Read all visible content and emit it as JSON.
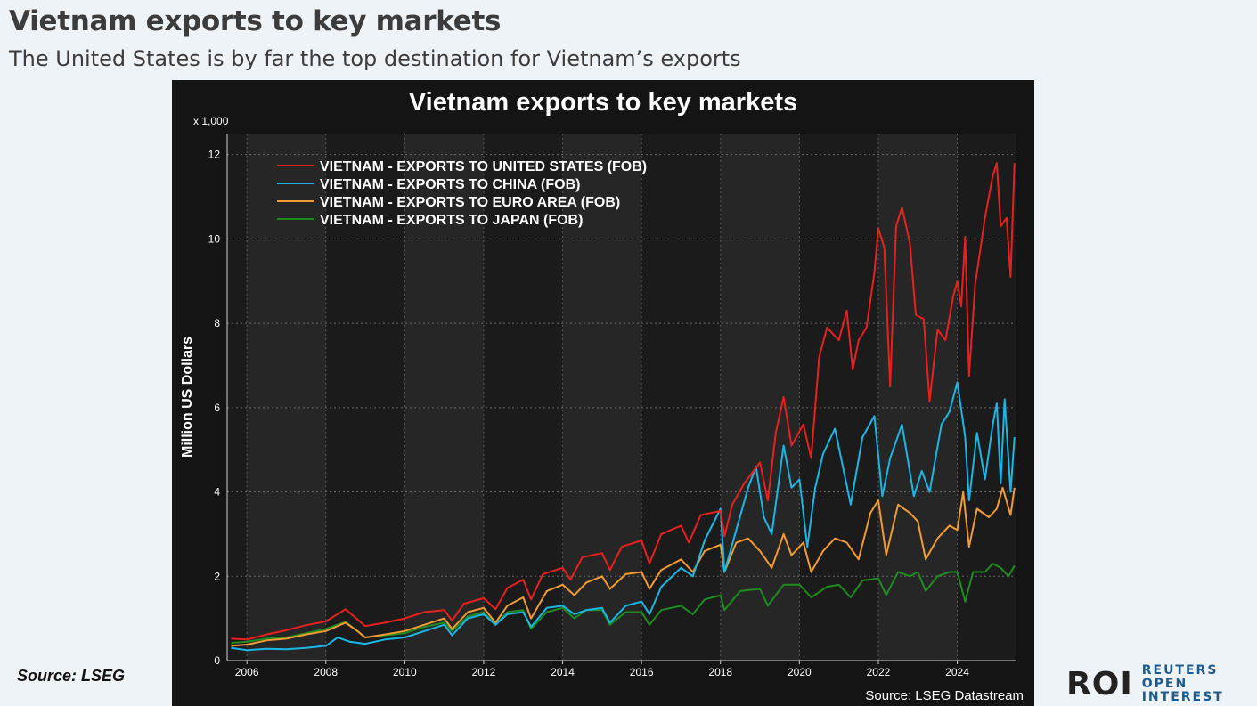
{
  "header": {
    "title": "Vietnam exports to key markets",
    "subtitle": "The United States is by far the top destination for Vietnam’s exports"
  },
  "footer": {
    "source": "Source: LSEG",
    "logo_mark": "ROI",
    "logo_text_line1": "REUTERS OPEN",
    "logo_text_line2": "INTEREST"
  },
  "colors": {
    "page_bg": "#eef3f8",
    "panel_bg": "#141414",
    "plot_band_light": "#262626",
    "plot_band_dark": "#1b1b1b",
    "us": "#e8211f",
    "china": "#1ab7e6",
    "euro": "#f29a33",
    "japan": "#1e8c1e"
  },
  "chart_data": {
    "type": "line",
    "title": "Vietnam exports to key markets",
    "ylabel": "Million US Dollars",
    "yunit_note": "x 1,000",
    "source_note": "Source: LSEG Datastream",
    "xlim": [
      2005.5,
      2025.5
    ],
    "ylim": [
      0,
      12.5
    ],
    "x_ticks": [
      2006,
      2008,
      2010,
      2012,
      2014,
      2016,
      2018,
      2020,
      2022,
      2024
    ],
    "y_ticks": [
      0,
      2,
      4,
      6,
      8,
      10,
      12
    ],
    "grid": true,
    "legend_position": "top-left",
    "series": [
      {
        "name": "VIETNAM - EXPORTS TO UNITED STATES (FOB)",
        "color": "#e8211f",
        "points": [
          [
            2005.6,
            0.52
          ],
          [
            2006.0,
            0.5
          ],
          [
            2006.5,
            0.62
          ],
          [
            2007.0,
            0.72
          ],
          [
            2007.5,
            0.84
          ],
          [
            2008.0,
            0.93
          ],
          [
            2008.5,
            1.22
          ],
          [
            2008.8,
            0.98
          ],
          [
            2009.0,
            0.82
          ],
          [
            2009.5,
            0.9
          ],
          [
            2010.0,
            1.0
          ],
          [
            2010.5,
            1.15
          ],
          [
            2011.0,
            1.2
          ],
          [
            2011.2,
            0.95
          ],
          [
            2011.5,
            1.35
          ],
          [
            2012.0,
            1.48
          ],
          [
            2012.3,
            1.22
          ],
          [
            2012.6,
            1.72
          ],
          [
            2013.0,
            1.92
          ],
          [
            2013.2,
            1.45
          ],
          [
            2013.5,
            2.05
          ],
          [
            2014.0,
            2.2
          ],
          [
            2014.2,
            1.92
          ],
          [
            2014.5,
            2.45
          ],
          [
            2015.0,
            2.55
          ],
          [
            2015.2,
            2.15
          ],
          [
            2015.5,
            2.7
          ],
          [
            2016.0,
            2.85
          ],
          [
            2016.2,
            2.3
          ],
          [
            2016.5,
            3.0
          ],
          [
            2017.0,
            3.2
          ],
          [
            2017.2,
            2.8
          ],
          [
            2017.5,
            3.45
          ],
          [
            2018.0,
            3.55
          ],
          [
            2018.1,
            2.95
          ],
          [
            2018.3,
            3.7
          ],
          [
            2018.6,
            4.2
          ],
          [
            2019.0,
            4.7
          ],
          [
            2019.2,
            3.8
          ],
          [
            2019.4,
            5.4
          ],
          [
            2019.6,
            6.25
          ],
          [
            2019.8,
            5.1
          ],
          [
            2020.1,
            5.6
          ],
          [
            2020.3,
            4.8
          ],
          [
            2020.5,
            7.2
          ],
          [
            2020.7,
            7.9
          ],
          [
            2021.0,
            7.6
          ],
          [
            2021.2,
            8.3
          ],
          [
            2021.35,
            6.9
          ],
          [
            2021.5,
            7.6
          ],
          [
            2021.7,
            7.9
          ],
          [
            2021.9,
            9.2
          ],
          [
            2022.0,
            10.25
          ],
          [
            2022.15,
            9.8
          ],
          [
            2022.3,
            6.5
          ],
          [
            2022.45,
            10.3
          ],
          [
            2022.6,
            10.75
          ],
          [
            2022.8,
            9.9
          ],
          [
            2022.95,
            8.2
          ],
          [
            2023.15,
            8.1
          ],
          [
            2023.3,
            6.15
          ],
          [
            2023.5,
            7.85
          ],
          [
            2023.7,
            7.6
          ],
          [
            2023.9,
            8.65
          ],
          [
            2024.0,
            9.0
          ],
          [
            2024.1,
            8.4
          ],
          [
            2024.2,
            10.05
          ],
          [
            2024.3,
            6.75
          ],
          [
            2024.45,
            8.9
          ],
          [
            2024.7,
            10.5
          ],
          [
            2024.9,
            11.5
          ],
          [
            2025.0,
            11.8
          ],
          [
            2025.1,
            10.3
          ],
          [
            2025.25,
            10.5
          ],
          [
            2025.35,
            9.1
          ],
          [
            2025.45,
            11.8
          ]
        ]
      },
      {
        "name": "VIETNAM - EXPORTS TO CHINA (FOB)",
        "color": "#1ab7e6",
        "points": [
          [
            2005.6,
            0.3
          ],
          [
            2006.0,
            0.25
          ],
          [
            2006.5,
            0.28
          ],
          [
            2007.0,
            0.27
          ],
          [
            2007.5,
            0.3
          ],
          [
            2008.0,
            0.35
          ],
          [
            2008.3,
            0.55
          ],
          [
            2008.6,
            0.45
          ],
          [
            2009.0,
            0.4
          ],
          [
            2009.5,
            0.5
          ],
          [
            2010.0,
            0.55
          ],
          [
            2010.5,
            0.7
          ],
          [
            2011.0,
            0.85
          ],
          [
            2011.2,
            0.6
          ],
          [
            2011.6,
            1.0
          ],
          [
            2012.0,
            1.1
          ],
          [
            2012.3,
            0.85
          ],
          [
            2012.6,
            1.1
          ],
          [
            2013.0,
            1.15
          ],
          [
            2013.2,
            0.8
          ],
          [
            2013.6,
            1.25
          ],
          [
            2014.0,
            1.3
          ],
          [
            2014.3,
            1.1
          ],
          [
            2014.6,
            1.2
          ],
          [
            2015.0,
            1.25
          ],
          [
            2015.2,
            0.9
          ],
          [
            2015.6,
            1.3
          ],
          [
            2016.0,
            1.4
          ],
          [
            2016.2,
            1.1
          ],
          [
            2016.5,
            1.75
          ],
          [
            2017.0,
            2.2
          ],
          [
            2017.3,
            2.0
          ],
          [
            2017.6,
            2.85
          ],
          [
            2018.0,
            3.6
          ],
          [
            2018.1,
            2.1
          ],
          [
            2018.4,
            3.1
          ],
          [
            2018.7,
            4.1
          ],
          [
            2018.9,
            4.6
          ],
          [
            2019.1,
            3.4
          ],
          [
            2019.3,
            3.0
          ],
          [
            2019.6,
            5.1
          ],
          [
            2019.8,
            4.1
          ],
          [
            2020.0,
            4.3
          ],
          [
            2020.2,
            2.7
          ],
          [
            2020.4,
            4.1
          ],
          [
            2020.6,
            4.9
          ],
          [
            2020.9,
            5.5
          ],
          [
            2021.1,
            4.6
          ],
          [
            2021.3,
            3.7
          ],
          [
            2021.6,
            5.3
          ],
          [
            2021.9,
            5.8
          ],
          [
            2022.1,
            3.9
          ],
          [
            2022.3,
            4.8
          ],
          [
            2022.6,
            5.6
          ],
          [
            2022.9,
            3.9
          ],
          [
            2023.1,
            4.5
          ],
          [
            2023.3,
            4.0
          ],
          [
            2023.6,
            5.6
          ],
          [
            2023.8,
            5.9
          ],
          [
            2024.0,
            6.6
          ],
          [
            2024.2,
            5.3
          ],
          [
            2024.3,
            3.8
          ],
          [
            2024.5,
            5.4
          ],
          [
            2024.7,
            4.3
          ],
          [
            2024.9,
            5.6
          ],
          [
            2025.0,
            6.1
          ],
          [
            2025.1,
            4.2
          ],
          [
            2025.2,
            6.2
          ],
          [
            2025.35,
            4.0
          ],
          [
            2025.45,
            5.3
          ]
        ]
      },
      {
        "name": "VIETNAM - EXPORTS TO EURO AREA (FOB)",
        "color": "#f29a33",
        "points": [
          [
            2005.6,
            0.35
          ],
          [
            2006.0,
            0.38
          ],
          [
            2006.5,
            0.48
          ],
          [
            2007.0,
            0.52
          ],
          [
            2007.5,
            0.62
          ],
          [
            2008.0,
            0.7
          ],
          [
            2008.5,
            0.9
          ],
          [
            2008.8,
            0.7
          ],
          [
            2009.0,
            0.55
          ],
          [
            2009.5,
            0.62
          ],
          [
            2010.0,
            0.7
          ],
          [
            2010.5,
            0.85
          ],
          [
            2011.0,
            1.0
          ],
          [
            2011.2,
            0.75
          ],
          [
            2011.6,
            1.15
          ],
          [
            2012.0,
            1.25
          ],
          [
            2012.3,
            0.9
          ],
          [
            2012.6,
            1.3
          ],
          [
            2013.0,
            1.5
          ],
          [
            2013.2,
            1.0
          ],
          [
            2013.6,
            1.65
          ],
          [
            2014.0,
            1.8
          ],
          [
            2014.3,
            1.55
          ],
          [
            2014.6,
            1.85
          ],
          [
            2015.0,
            2.0
          ],
          [
            2015.2,
            1.7
          ],
          [
            2015.6,
            2.05
          ],
          [
            2016.0,
            2.1
          ],
          [
            2016.2,
            1.7
          ],
          [
            2016.5,
            2.15
          ],
          [
            2017.0,
            2.4
          ],
          [
            2017.3,
            2.1
          ],
          [
            2017.6,
            2.6
          ],
          [
            2018.0,
            2.75
          ],
          [
            2018.1,
            2.1
          ],
          [
            2018.4,
            2.8
          ],
          [
            2018.7,
            2.9
          ],
          [
            2019.0,
            2.6
          ],
          [
            2019.3,
            2.2
          ],
          [
            2019.6,
            3.0
          ],
          [
            2019.8,
            2.5
          ],
          [
            2020.1,
            2.8
          ],
          [
            2020.3,
            2.1
          ],
          [
            2020.6,
            2.6
          ],
          [
            2020.9,
            2.9
          ],
          [
            2021.2,
            2.8
          ],
          [
            2021.5,
            2.4
          ],
          [
            2021.8,
            3.5
          ],
          [
            2022.0,
            3.8
          ],
          [
            2022.2,
            2.5
          ],
          [
            2022.5,
            3.7
          ],
          [
            2022.8,
            3.5
          ],
          [
            2023.0,
            3.3
          ],
          [
            2023.2,
            2.4
          ],
          [
            2023.5,
            2.9
          ],
          [
            2023.8,
            3.2
          ],
          [
            2024.0,
            3.1
          ],
          [
            2024.15,
            4.0
          ],
          [
            2024.3,
            2.7
          ],
          [
            2024.5,
            3.6
          ],
          [
            2024.8,
            3.4
          ],
          [
            2025.0,
            3.6
          ],
          [
            2025.15,
            4.1
          ],
          [
            2025.35,
            3.45
          ],
          [
            2025.45,
            4.1
          ]
        ]
      },
      {
        "name": "VIETNAM - EXPORTS TO JAPAN (FOB)",
        "color": "#1e8c1e",
        "points": [
          [
            2005.6,
            0.42
          ],
          [
            2006.0,
            0.45
          ],
          [
            2006.5,
            0.52
          ],
          [
            2007.0,
            0.55
          ],
          [
            2007.5,
            0.65
          ],
          [
            2008.0,
            0.75
          ],
          [
            2008.5,
            0.92
          ],
          [
            2008.8,
            0.7
          ],
          [
            2009.0,
            0.55
          ],
          [
            2009.5,
            0.6
          ],
          [
            2010.0,
            0.65
          ],
          [
            2010.5,
            0.8
          ],
          [
            2011.0,
            0.9
          ],
          [
            2011.2,
            0.7
          ],
          [
            2011.6,
            1.05
          ],
          [
            2012.0,
            1.15
          ],
          [
            2012.3,
            0.85
          ],
          [
            2012.6,
            1.15
          ],
          [
            2013.0,
            1.2
          ],
          [
            2013.2,
            0.75
          ],
          [
            2013.6,
            1.15
          ],
          [
            2014.0,
            1.25
          ],
          [
            2014.3,
            1.0
          ],
          [
            2014.6,
            1.2
          ],
          [
            2015.0,
            1.2
          ],
          [
            2015.2,
            0.85
          ],
          [
            2015.6,
            1.15
          ],
          [
            2016.0,
            1.15
          ],
          [
            2016.2,
            0.85
          ],
          [
            2016.5,
            1.2
          ],
          [
            2017.0,
            1.3
          ],
          [
            2017.3,
            1.1
          ],
          [
            2017.6,
            1.45
          ],
          [
            2018.0,
            1.55
          ],
          [
            2018.1,
            1.2
          ],
          [
            2018.5,
            1.65
          ],
          [
            2019.0,
            1.7
          ],
          [
            2019.2,
            1.3
          ],
          [
            2019.6,
            1.8
          ],
          [
            2020.0,
            1.8
          ],
          [
            2020.3,
            1.5
          ],
          [
            2020.7,
            1.75
          ],
          [
            2021.0,
            1.8
          ],
          [
            2021.3,
            1.5
          ],
          [
            2021.6,
            1.9
          ],
          [
            2022.0,
            1.95
          ],
          [
            2022.2,
            1.55
          ],
          [
            2022.5,
            2.1
          ],
          [
            2022.8,
            2.0
          ],
          [
            2023.0,
            2.1
          ],
          [
            2023.2,
            1.65
          ],
          [
            2023.5,
            2.0
          ],
          [
            2023.8,
            2.1
          ],
          [
            2024.0,
            2.1
          ],
          [
            2024.2,
            1.4
          ],
          [
            2024.4,
            2.1
          ],
          [
            2024.7,
            2.1
          ],
          [
            2024.9,
            2.3
          ],
          [
            2025.1,
            2.2
          ],
          [
            2025.3,
            2.0
          ],
          [
            2025.45,
            2.25
          ]
        ]
      }
    ]
  }
}
